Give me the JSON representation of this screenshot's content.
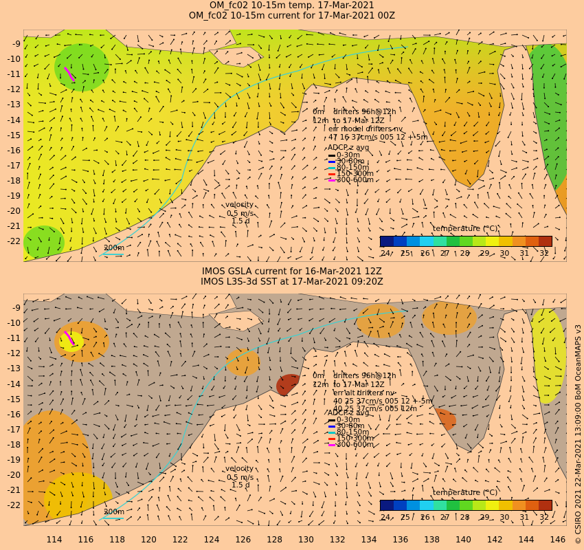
{
  "panel1": {
    "title_line1": "OM_fc02 10-15m temp. 17-Mar-2021",
    "title_line2": "OM_fc02 10-15m current for 17-Mar-2021 00Z",
    "info": {
      "depth": "0m",
      "drifters": "drifters 96h@12h",
      "depth2": "12m",
      "to": "to 17-Mar 12Z",
      "err": "err model drifters nv",
      "stats": "47 16 37cm/s 005 12 +-5m"
    },
    "adcp_title": "ADCP z avg",
    "adcp_items": [
      {
        "label": "0-30m",
        "color": "#000000"
      },
      {
        "label": "30-80m",
        "color": "#0000ff"
      },
      {
        "label": "80-150m",
        "color": "#00c8c8"
      },
      {
        "label": "150-300m",
        "color": "#ff2000"
      },
      {
        "label": "300-600m",
        "color": "#ff00ff"
      }
    ],
    "velocity": {
      "label": "velocity",
      "speed": "0.5 m/s",
      "time": "1.5 d"
    },
    "isobath": "200m",
    "colorbar_title": "temperature (°C)"
  },
  "panel2": {
    "title_line1": "IMOS GSLA current for 16-Mar-2021 12Z",
    "title_line2": "IMOS L3S-3d SST at 17-Mar-2021 09:20Z",
    "info": {
      "depth": "0m",
      "drifters": "drifters 96h@12h",
      "depth2": "12m",
      "to": "to 17-Mar 12Z",
      "err": "err alt drifters nv",
      "stats": "40 25 37cm/s 005 12 +-5m",
      "stats2": "40 25 37cm/s 005 12m"
    },
    "adcp_title": "ADCP z avg",
    "adcp_items": [
      {
        "label": "0-30m",
        "color": "#000000"
      },
      {
        "label": "30-80m",
        "color": "#0000ff"
      },
      {
        "label": "80-150m",
        "color": "#00c8c8"
      },
      {
        "label": "150-300m",
        "color": "#ff2000"
      },
      {
        "label": "300-600m",
        "color": "#ff00ff"
      }
    ],
    "velocity": {
      "label": "velocity",
      "speed": "0.5 m/s",
      "time": "1.5 d"
    },
    "isobath": "200m",
    "colorbar_title": "temperature (°C)"
  },
  "colorbar_ticks": [
    "24",
    "25",
    "26",
    "27",
    "28",
    "29",
    "30",
    "31",
    "32"
  ],
  "colorbar_colors": [
    "#0a1a80",
    "#0040c0",
    "#0090e0",
    "#20d0f0",
    "#30e0a0",
    "#20c040",
    "#60d820",
    "#b8e818",
    "#f0f010",
    "#f0c000",
    "#f09020",
    "#e06010",
    "#b03010"
  ],
  "lat_ticks": [
    "-9",
    "-10",
    "-11",
    "-12",
    "-13",
    "-14",
    "-15",
    "-16",
    "-17",
    "-18",
    "-19",
    "-20",
    "-21",
    "-22"
  ],
  "lon_ticks": [
    "114",
    "116",
    "118",
    "120",
    "122",
    "124",
    "126",
    "128",
    "130",
    "132",
    "134",
    "136",
    "138",
    "140",
    "142",
    "144",
    "146"
  ],
  "credit": "© CSIRO 2021  22-Mar-2021 13:09:00 BoM OceanMAPS v3",
  "colors": {
    "land": "#fdcc9f",
    "grey_sea": "#c0a890",
    "isobath": "#40d0d0"
  }
}
